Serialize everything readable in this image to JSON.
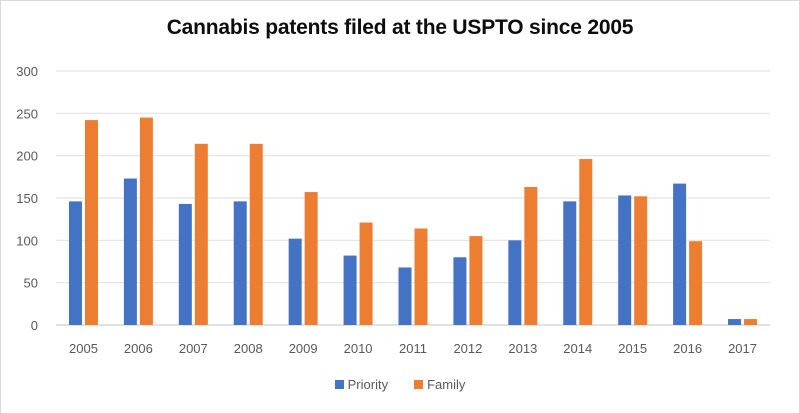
{
  "chart_data": {
    "type": "bar",
    "title": "Cannabis patents filed at the USPTO since 2005",
    "xlabel": "",
    "ylabel": "",
    "ylim": [
      0,
      300
    ],
    "yticks": [
      0,
      50,
      100,
      150,
      200,
      250,
      300
    ],
    "grid": true,
    "legend_position": "bottom",
    "categories": [
      "2005",
      "2006",
      "2007",
      "2008",
      "2009",
      "2010",
      "2011",
      "2012",
      "2013",
      "2014",
      "2015",
      "2016",
      "2017"
    ],
    "series": [
      {
        "name": "Priority",
        "color": "#4472c4",
        "values": [
          146,
          173,
          143,
          146,
          102,
          82,
          68,
          80,
          100,
          146,
          153,
          167,
          7
        ]
      },
      {
        "name": "Family",
        "color": "#ed7d31",
        "values": [
          242,
          245,
          214,
          214,
          157,
          121,
          114,
          105,
          163,
          196,
          152,
          99,
          7
        ]
      }
    ]
  }
}
